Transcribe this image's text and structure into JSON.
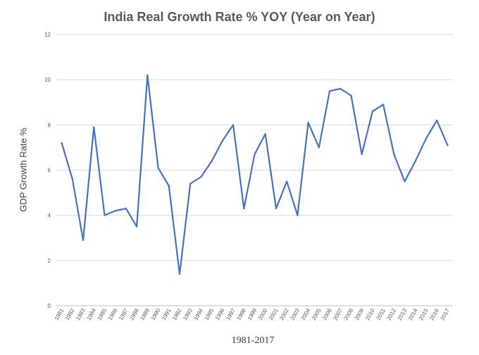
{
  "chart_data": {
    "type": "line",
    "title": "India Real Growth Rate % YOY (Year on Year)",
    "xlabel": "1981-2017",
    "ylabel": "GDP Growth Rate %",
    "ylim": [
      0,
      12
    ],
    "yticks": [
      "0",
      "2",
      "4",
      "6",
      "8",
      "10",
      "12"
    ],
    "grid": true,
    "colors": {
      "line": "#4472c4",
      "grid": "#d9d9d9",
      "axis": "#bfbfbf"
    },
    "categories": [
      "1981",
      "1982",
      "1983",
      "1984",
      "1985",
      "1986",
      "1987",
      "1988",
      "1989",
      "1990",
      "1991",
      "1992",
      "1993",
      "1994",
      "1995",
      "1996",
      "1997",
      "1998",
      "1999",
      "2000",
      "2001",
      "2002",
      "2003",
      "2004",
      "2005",
      "2006",
      "2007",
      "2008",
      "2009",
      "2010",
      "2011",
      "2012",
      "2013",
      "2014",
      "2015",
      "2016",
      "2017"
    ],
    "series": [
      {
        "values": [
          7.2,
          5.6,
          2.9,
          7.9,
          4.0,
          4.2,
          4.3,
          3.5,
          10.2,
          6.1,
          5.3,
          1.4,
          5.4,
          5.7,
          6.4,
          7.3,
          8.0,
          4.3,
          6.7,
          7.6,
          4.3,
          5.5,
          4.0,
          8.1,
          7.0,
          9.5,
          9.6,
          9.3,
          6.7,
          8.6,
          8.9,
          6.7,
          5.5,
          6.4,
          7.4,
          8.2,
          7.1
        ]
      }
    ]
  }
}
